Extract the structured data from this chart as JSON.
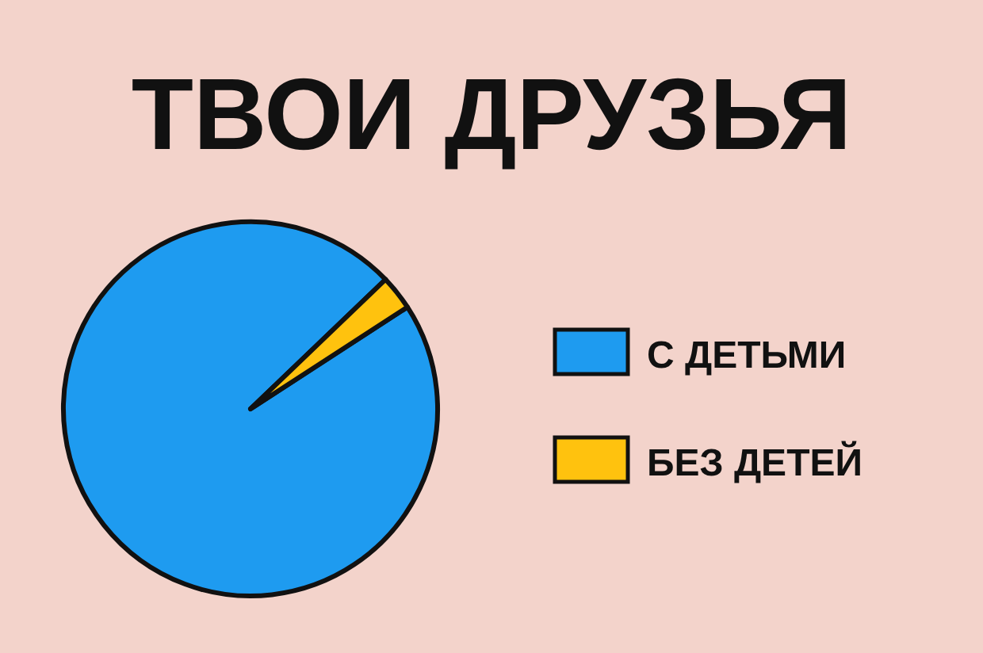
{
  "chart_data": {
    "type": "pie",
    "title": "ТВОИ ДРУЗЬЯ",
    "categories": [
      "С ДЕТЬМИ",
      "БЕЗ ДЕТЕЙ"
    ],
    "values": [
      97,
      3
    ],
    "colors": [
      "#1e9bf0",
      "#ffc20e"
    ],
    "legend": "right"
  }
}
